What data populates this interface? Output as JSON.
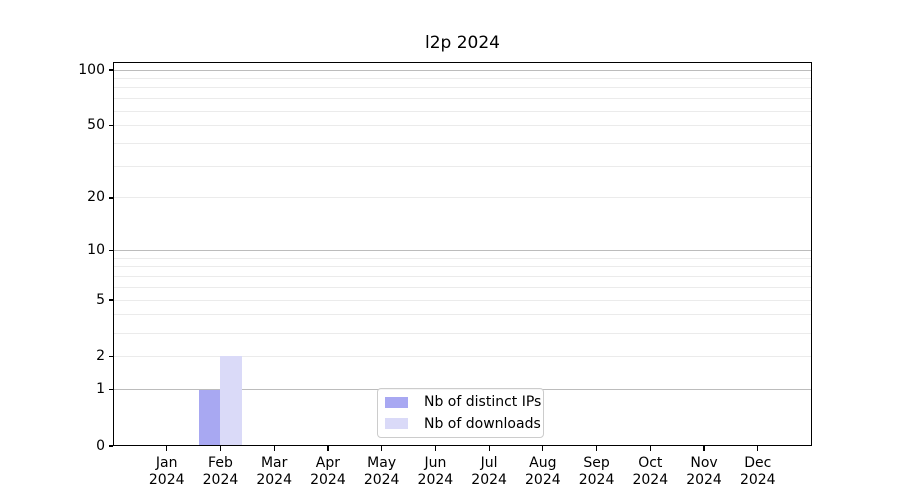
{
  "chart_data": {
    "type": "bar",
    "title": "l2p 2024",
    "xlabel": "",
    "ylabel": "",
    "categories": [
      "Jan 2024",
      "Feb 2024",
      "Mar 2024",
      "Apr 2024",
      "May 2024",
      "Jun 2024",
      "Jul 2024",
      "Aug 2024",
      "Sep 2024",
      "Oct 2024",
      "Nov 2024",
      "Dec 2024"
    ],
    "series": [
      {
        "name": "Nb of distinct IPs",
        "color": "#a8a8f2",
        "values": [
          0,
          1,
          0,
          0,
          0,
          0,
          0,
          0,
          0,
          0,
          0,
          0
        ]
      },
      {
        "name": "Nb of downloads",
        "color": "#dadaf8",
        "values": [
          0,
          2,
          0,
          0,
          0,
          0,
          0,
          0,
          0,
          0,
          0,
          0
        ]
      }
    ],
    "y_scale": "log1p",
    "ylim": [
      0,
      111
    ],
    "y_tick_labels": [
      0,
      1,
      2,
      5,
      10,
      20,
      50,
      100
    ],
    "grid": {
      "major_values": [
        1,
        10,
        100
      ],
      "minor_values": [
        2,
        3,
        4,
        5,
        6,
        7,
        8,
        9,
        20,
        30,
        40,
        50,
        60,
        70,
        80,
        90
      ],
      "major_color": "#bcbcbc",
      "minor_color": "#ebebeb"
    },
    "legend": {
      "position": "lower center",
      "entries": [
        "Nb of distinct IPs",
        "Nb of downloads"
      ]
    }
  }
}
